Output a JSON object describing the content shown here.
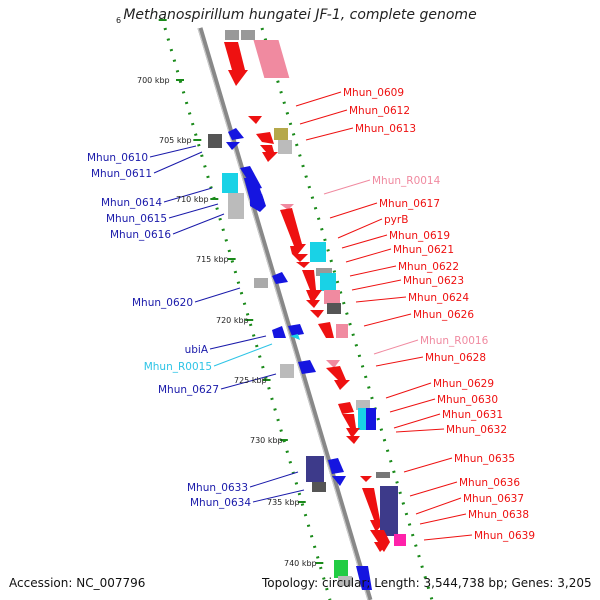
{
  "title": "Methanospirillum hungatei JF-1, complete genome",
  "accession": "Accession: NC_007796",
  "topology": "Topology: circular; Length: 3,544,738 bp; Genes: 3,205",
  "colors": {
    "red_gene": "#ee1111",
    "pink_gene": "#f08aa0",
    "blue_gene": "#1515e0",
    "cyan_gene": "#19d2e6",
    "gray_gene": "#999999",
    "olive_gene": "#b5a84a",
    "navy_gene": "#3d3a8a",
    "magenta_gene": "#ff22aa",
    "ruler": "#1a8a1a",
    "backbone": "#8a8a8a"
  },
  "ticks": [
    "6",
    "700 kbp",
    "705 kbp",
    "710 kbp",
    "715 kbp",
    "720 kbp",
    "725 kbp",
    "730 kbp",
    "735 kbp",
    "740 kbp"
  ],
  "right_labels": [
    {
      "text": "Mhun_0609",
      "color": "red"
    },
    {
      "text": "Mhun_0612",
      "color": "red"
    },
    {
      "text": "Mhun_0613",
      "color": "red"
    },
    {
      "text": "Mhun_R0014",
      "color": "pink"
    },
    {
      "text": "Mhun_0617",
      "color": "red"
    },
    {
      "text": "pyrB",
      "color": "red"
    },
    {
      "text": "Mhun_0619",
      "color": "red"
    },
    {
      "text": "Mhun_0621",
      "color": "red"
    },
    {
      "text": "Mhun_0622",
      "color": "red"
    },
    {
      "text": "Mhun_0623",
      "color": "red"
    },
    {
      "text": "Mhun_0624",
      "color": "red"
    },
    {
      "text": "Mhun_0626",
      "color": "red"
    },
    {
      "text": "Mhun_R0016",
      "color": "pink"
    },
    {
      "text": "Mhun_0628",
      "color": "red"
    },
    {
      "text": "Mhun_0629",
      "color": "red"
    },
    {
      "text": "Mhun_0630",
      "color": "red"
    },
    {
      "text": "Mhun_0631",
      "color": "red"
    },
    {
      "text": "Mhun_0632",
      "color": "red"
    },
    {
      "text": "Mhun_0635",
      "color": "red"
    },
    {
      "text": "Mhun_0636",
      "color": "red"
    },
    {
      "text": "Mhun_0637",
      "color": "red"
    },
    {
      "text": "Mhun_0638",
      "color": "red"
    },
    {
      "text": "Mhun_0639",
      "color": "red"
    }
  ],
  "left_labels": [
    {
      "text": "Mhun_0610",
      "color": "blue"
    },
    {
      "text": "Mhun_0611",
      "color": "blue"
    },
    {
      "text": "Mhun_0614",
      "color": "blue"
    },
    {
      "text": "Mhun_0615",
      "color": "blue"
    },
    {
      "text": "Mhun_0616",
      "color": "blue"
    },
    {
      "text": "Mhun_0620",
      "color": "blue"
    },
    {
      "text": "ubiA",
      "color": "blue"
    },
    {
      "text": "Mhun_R0015",
      "color": "cyan"
    },
    {
      "text": "Mhun_0627",
      "color": "blue"
    },
    {
      "text": "Mhun_0633",
      "color": "blue"
    },
    {
      "text": "Mhun_0634",
      "color": "blue"
    }
  ]
}
